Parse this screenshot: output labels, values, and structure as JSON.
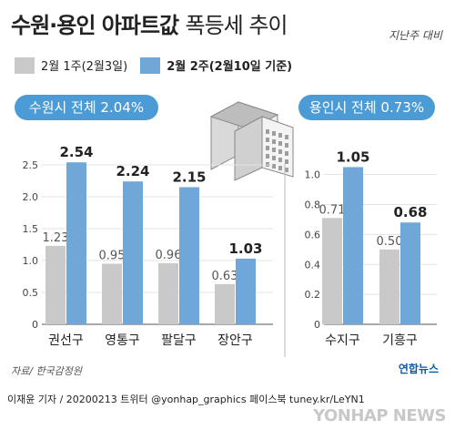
{
  "header": {
    "title_bold": "수원·용인 아파트값",
    "title_light": "폭등세 추이",
    "subtitle": "지난주 대비"
  },
  "legend": {
    "prev_label": "2월 1주(2월3일)",
    "curr_label": "2월 2주(2월10일 기준)"
  },
  "colors": {
    "prev": "#c9c9c9",
    "curr": "#6ea7d8",
    "pill": "#4a9bd6"
  },
  "pills": {
    "suwon": "수원시 전체 2.04%",
    "yongin": "용인시 전체 0.73%"
  },
  "chart_data": [
    {
      "type": "bar",
      "title": "수원시 전체 2.04%",
      "categories": [
        "권선구",
        "영통구",
        "팔달구",
        "장안구"
      ],
      "series": [
        {
          "name": "2월 1주(2월3일)",
          "values": [
            1.23,
            0.95,
            0.96,
            0.63
          ]
        },
        {
          "name": "2월 2주(2월10일 기준)",
          "values": [
            2.54,
            2.24,
            2.15,
            1.03
          ]
        }
      ],
      "yticks": [
        "0",
        "0.5",
        "1.0",
        "1.5",
        "2.0",
        "2.5"
      ],
      "ylim": [
        0,
        2.7
      ]
    },
    {
      "type": "bar",
      "title": "용인시 전체 0.73%",
      "categories": [
        "수지구",
        "기흥구"
      ],
      "series": [
        {
          "name": "2월 1주(2월3일)",
          "values": [
            0.71,
            0.5
          ]
        },
        {
          "name": "2월 2주(2월10일 기준)",
          "values": [
            1.05,
            0.68
          ]
        }
      ],
      "yticks": [
        "0",
        "0.2",
        "0.4",
        "0.6",
        "0.8",
        "1.0"
      ],
      "ylim": [
        0,
        1.15
      ]
    }
  ],
  "source": "자료/ 한국감정원",
  "brand": "연합뉴스",
  "footer": "이재윤 기자 / 20200213  트위터 @yonhap_graphics  페이스북 tuney.kr/LeYN1",
  "watermark": "YONHAP NEWS"
}
